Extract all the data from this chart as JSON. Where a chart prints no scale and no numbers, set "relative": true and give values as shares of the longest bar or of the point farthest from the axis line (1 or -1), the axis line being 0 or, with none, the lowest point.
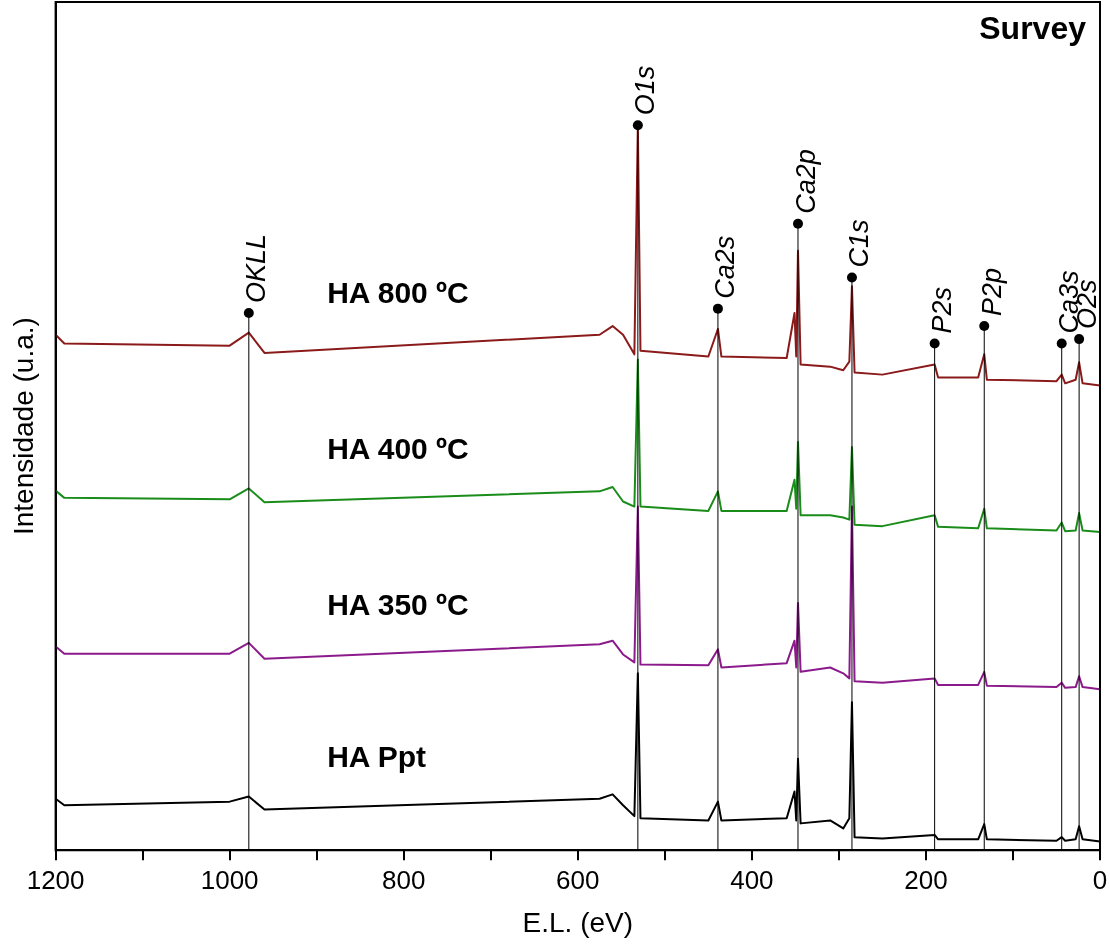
{
  "chart_data": {
    "type": "line",
    "title": "Survey",
    "xlabel": "E.L. (eV)",
    "ylabel": "Intensidade (u.a.)",
    "relative": true,
    "legend": false,
    "grid": false,
    "marker": "none",
    "x": [
      1200,
      1190,
      1000,
      978,
      960,
      575,
      560,
      548,
      535,
      531,
      528,
      450,
      439,
      435,
      360,
      351,
      349,
      347,
      344,
      310,
      295,
      288,
      285,
      282,
      250,
      190,
      186,
      140,
      133,
      130,
      50,
      44,
      40,
      28,
      24,
      20,
      0
    ],
    "xlim": [
      1200,
      0
    ],
    "xticks": [
      0,
      {
        "value": 100,
        "label": null
      },
      200,
      {
        "value": 300,
        "label": null
      },
      400,
      {
        "value": 500,
        "label": null
      },
      600,
      {
        "value": 700,
        "label": null
      },
      800,
      {
        "value": 900,
        "label": null
      },
      1000,
      {
        "value": 1100,
        "label": null
      },
      1200
    ],
    "series": [
      {
        "name": "HA 800 ºC",
        "color": "#8b1a1a",
        "values": [
          0.711,
          0.699,
          0.696,
          0.714,
          0.686,
          0.711,
          0.723,
          0.711,
          0.684,
          1.0,
          0.689,
          0.681,
          0.719,
          0.681,
          0.679,
          0.741,
          0.681,
          0.827,
          0.67,
          0.667,
          0.662,
          0.674,
          0.778,
          0.659,
          0.656,
          0.67,
          0.652,
          0.652,
          0.684,
          0.649,
          0.647,
          0.656,
          0.644,
          0.649,
          0.673,
          0.644,
          0.641
        ]
      },
      {
        "name": "HA 400 ºC",
        "color": "#1a8c1a",
        "values": [
          0.496,
          0.486,
          0.484,
          0.499,
          0.48,
          0.495,
          0.501,
          0.481,
          0.474,
          0.677,
          0.474,
          0.468,
          0.495,
          0.468,
          0.468,
          0.511,
          0.471,
          0.563,
          0.462,
          0.462,
          0.459,
          0.456,
          0.556,
          0.449,
          0.447,
          0.462,
          0.446,
          0.444,
          0.471,
          0.444,
          0.441,
          0.452,
          0.44,
          0.441,
          0.465,
          0.441,
          0.439
        ]
      },
      {
        "name": "HA 350 ºC",
        "color": "#8b1a8b",
        "values": [
          0.281,
          0.271,
          0.271,
          0.286,
          0.264,
          0.284,
          0.289,
          0.27,
          0.259,
          0.474,
          0.256,
          0.255,
          0.277,
          0.252,
          0.258,
          0.289,
          0.252,
          0.341,
          0.246,
          0.252,
          0.244,
          0.237,
          0.474,
          0.233,
          0.231,
          0.237,
          0.228,
          0.228,
          0.246,
          0.227,
          0.225,
          0.231,
          0.224,
          0.225,
          0.24,
          0.225,
          0.222
        ]
      },
      {
        "name": "HA Ppt",
        "color": "#000000",
        "values": [
          0.071,
          0.062,
          0.067,
          0.074,
          0.056,
          0.071,
          0.077,
          0.062,
          0.047,
          0.244,
          0.044,
          0.041,
          0.067,
          0.041,
          0.044,
          0.081,
          0.041,
          0.126,
          0.037,
          0.041,
          0.03,
          0.044,
          0.204,
          0.018,
          0.016,
          0.021,
          0.015,
          0.015,
          0.036,
          0.015,
          0.013,
          0.018,
          0.013,
          0.015,
          0.033,
          0.015,
          0.012
        ]
      }
    ],
    "ref_lines": [
      {
        "axis": "x",
        "value": 978
      },
      {
        "axis": "x",
        "value": 531
      },
      {
        "axis": "x",
        "value": 439
      },
      {
        "axis": "x",
        "value": 347
      },
      {
        "axis": "x",
        "value": 285
      },
      {
        "axis": "x",
        "value": 190
      },
      {
        "axis": "x",
        "value": 133
      },
      {
        "axis": "x",
        "value": 44
      },
      {
        "axis": "x",
        "value": 24
      }
    ],
    "annotations": [
      {
        "text": "OKLL",
        "x": 978,
        "y": 0.741
      },
      {
        "text": "O1s",
        "x": 531,
        "y": 1.0
      },
      {
        "text": "Ca2s",
        "x": 439,
        "y": 0.747
      },
      {
        "text": "Ca2p",
        "x": 347,
        "y": 0.864
      },
      {
        "text": "C1s",
        "x": 285,
        "y": 0.79
      },
      {
        "text": "P2s",
        "x": 190,
        "y": 0.699
      },
      {
        "text": "P2p",
        "x": 133,
        "y": 0.723
      },
      {
        "text": "Ca3s",
        "x": 44,
        "y": 0.699
      },
      {
        "text": "O2s",
        "x": 24,
        "y": 0.705
      }
    ]
  }
}
